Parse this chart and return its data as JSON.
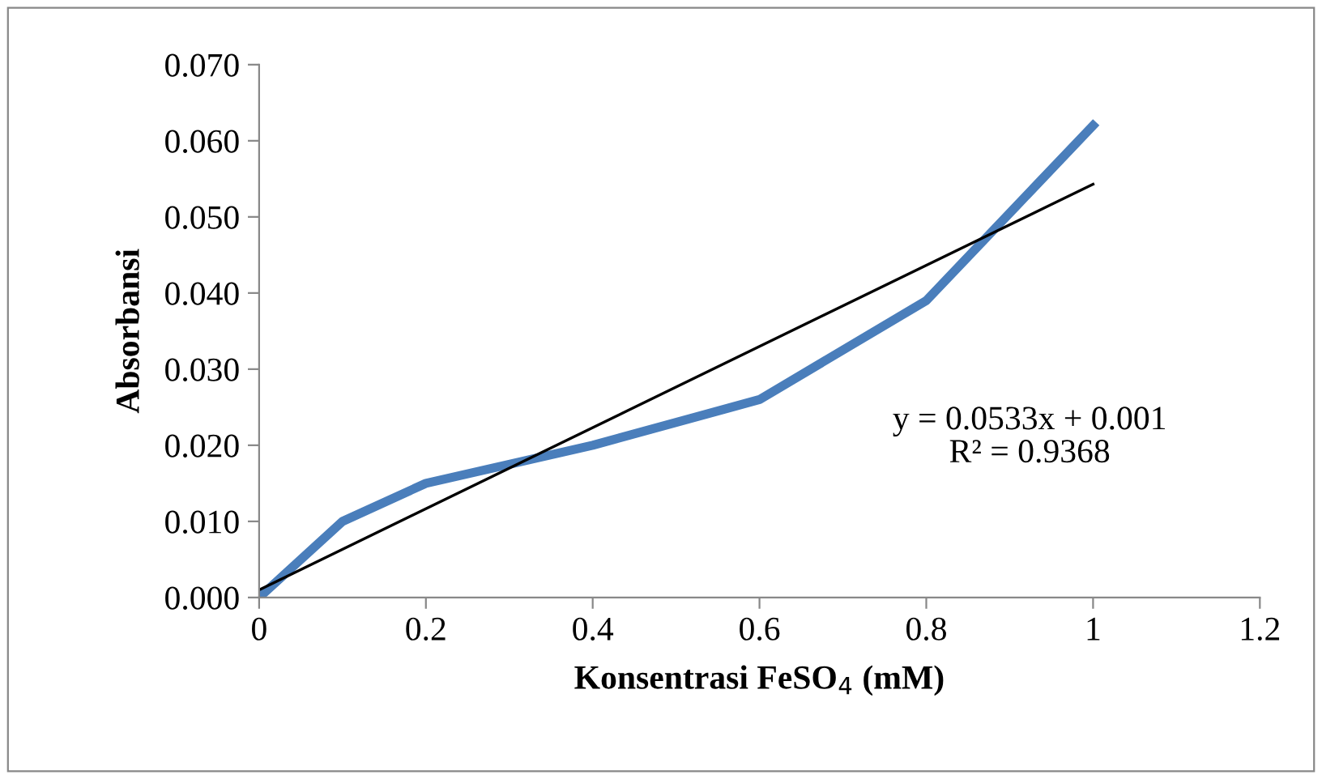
{
  "chart_data": {
    "type": "line",
    "xlabel": "Konsentrasi FeSO$_{4}$ (mM)",
    "ylabel": "Absorbansi",
    "x": [
      0,
      0.1,
      0.2,
      0.4,
      0.6,
      0.8,
      1
    ],
    "series": [
      {
        "color": "#4a7ebb",
        "values": [
          0,
          0.01,
          0.015,
          0.02,
          0.026,
          0.039,
          0.062
        ]
      },
      {
        "type": "line",
        "color": "#000000",
        "x": [
          0,
          1
        ],
        "values": [
          0.001,
          0.0543
        ]
      }
    ],
    "annotations": [
      "y = 0.0533x + 0.001\nR² = 0.9368"
    ],
    "xlim": [
      0,
      1.2
    ],
    "xticks": [
      0,
      0.2,
      0.4,
      0.6,
      0.8,
      1,
      1.2
    ],
    "ylim": [
      0,
      0.07
    ],
    "yticks": [
      {
        "value": 0,
        "label": "0.000"
      },
      {
        "value": 0.01,
        "label": "0.010"
      },
      {
        "value": 0.02,
        "label": "0.020"
      },
      {
        "value": 0.03,
        "label": "0.030"
      },
      {
        "value": 0.04,
        "label": "0.040"
      },
      {
        "value": 0.05,
        "label": "0.050"
      },
      {
        "value": 0.06,
        "label": "0.060"
      },
      {
        "value": 0.07,
        "label": "0.070"
      }
    ],
    "grid": false,
    "legend": false
  }
}
